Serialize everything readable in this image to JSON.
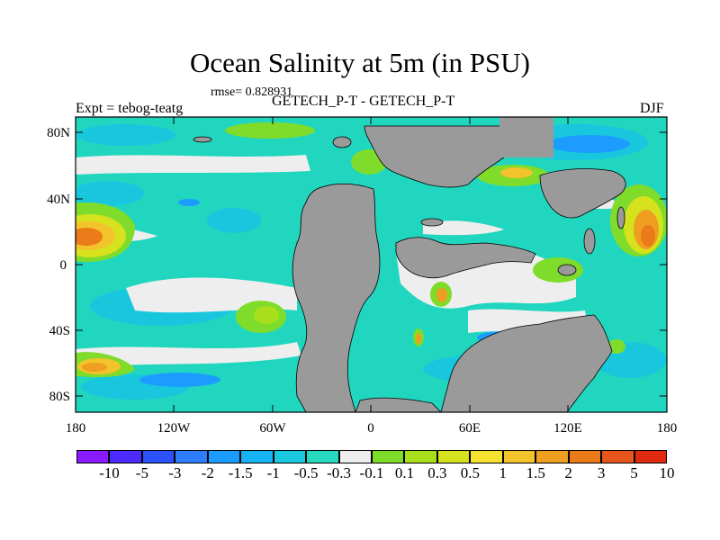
{
  "map": {
    "title": "Ocean Salinity at 5m (in PSU)",
    "rmse_label": "rmse= 0.828931",
    "subtitle": "GETECH_P-T - GETECH_P-T",
    "experiment_label": "Expt = tebog-teatg",
    "season": "DJF",
    "lat_ticks": [
      "80N",
      "40N",
      "0",
      "40S",
      "80S"
    ],
    "lon_ticks": [
      "180",
      "120W",
      "60W",
      "0",
      "60E",
      "120E",
      "180"
    ],
    "colors": {
      "land": "#9a9a9a",
      "ocean_base": "#21d6bf"
    }
  },
  "colorbar": {
    "colors": [
      "#8a1aff",
      "#4d2bff",
      "#2c52ff",
      "#2e7dff",
      "#1c9cff",
      "#16b4f2",
      "#1ac8df",
      "#26d9bf",
      "#eeeeee",
      "#7fdc2a",
      "#a7e01a",
      "#d6e21e",
      "#f5e12f",
      "#f2c32b",
      "#ee9e20",
      "#ea7b18",
      "#e6561c",
      "#e02a10"
    ],
    "labels": [
      "-10",
      "-5",
      "-3",
      "-2",
      "-1.5",
      "-1",
      "-0.5",
      "-0.3",
      "-0.1",
      "0.1",
      "0.3",
      "0.5",
      "1",
      "1.5",
      "2",
      "3",
      "5",
      "10"
    ]
  }
}
